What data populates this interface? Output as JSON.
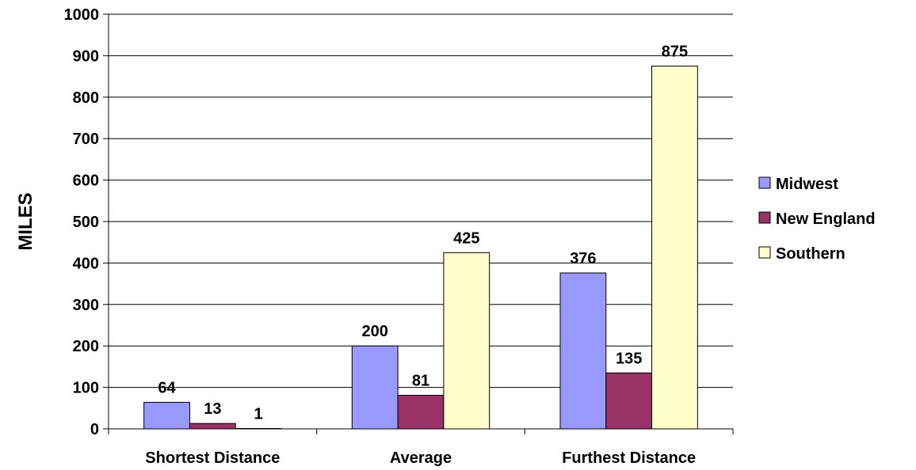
{
  "chart_data": {
    "type": "bar",
    "categories": [
      "Shortest Distance",
      "Average",
      "Furthest Distance"
    ],
    "series": [
      {
        "name": "Midwest",
        "values": [
          64,
          200,
          376
        ],
        "color": "#9999ff"
      },
      {
        "name": "New England",
        "values": [
          13,
          81,
          135
        ],
        "color": "#993366"
      },
      {
        "name": "Southern",
        "values": [
          1,
          425,
          875
        ],
        "color": "#ffffcc"
      }
    ],
    "ylabel": "MILES",
    "xlabel": "",
    "ylim": [
      0,
      1000
    ],
    "yticks": [
      0,
      100,
      200,
      300,
      400,
      500,
      600,
      700,
      800,
      900,
      1000
    ],
    "grid": true,
    "legend_position": "right"
  }
}
